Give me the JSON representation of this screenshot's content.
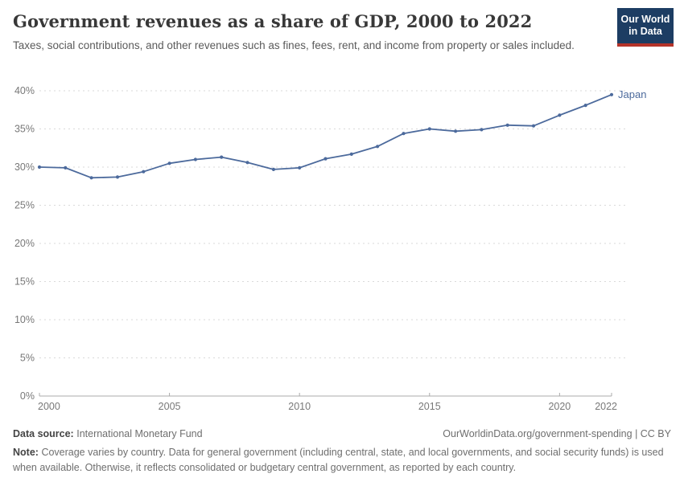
{
  "header": {
    "title": "Government revenues as a share of GDP, 2000 to 2022",
    "subtitle": "Taxes, social contributions, and other revenues such as fines, fees, rent, and income from property or sales included.",
    "logo": {
      "line1": "Our World",
      "line2": "in Data",
      "bg_color": "#1d3d63",
      "accent_color": "#b5332a"
    }
  },
  "chart_data": {
    "type": "line",
    "title": "Government revenues as a share of GDP, 2000 to 2022",
    "xlabel": "",
    "ylabel": "",
    "xlim": [
      2000,
      2022
    ],
    "ylim": [
      0,
      40
    ],
    "yticks": [
      0,
      5,
      10,
      15,
      20,
      25,
      30,
      35,
      40
    ],
    "ytick_suffix": "%",
    "xticks": [
      2000,
      2005,
      2010,
      2015,
      2020,
      2022
    ],
    "grid": "horizontal-dashed",
    "legend_position": "end-of-line",
    "series": [
      {
        "name": "Japan",
        "color": "#4C6A9C",
        "x": [
          2000,
          2001,
          2002,
          2003,
          2004,
          2005,
          2006,
          2007,
          2008,
          2009,
          2010,
          2011,
          2012,
          2013,
          2014,
          2015,
          2016,
          2017,
          2018,
          2019,
          2020,
          2021,
          2022
        ],
        "values": [
          30.0,
          29.9,
          28.6,
          28.7,
          29.4,
          30.5,
          31.0,
          31.3,
          30.6,
          29.7,
          29.9,
          31.1,
          31.7,
          32.7,
          34.4,
          35.0,
          34.7,
          34.9,
          35.5,
          35.4,
          36.8,
          38.1,
          39.5
        ]
      }
    ]
  },
  "footer": {
    "source_label": "Data source:",
    "source_value": "International Monetary Fund",
    "attribution": "OurWorldinData.org/government-spending | CC BY",
    "note_label": "Note:",
    "note_value": "Coverage varies by country. Data for general government (including central, state, and local governments, and social security funds) is used when available. Otherwise, it reflects consolidated or budgetary central government, as reported by each country."
  }
}
